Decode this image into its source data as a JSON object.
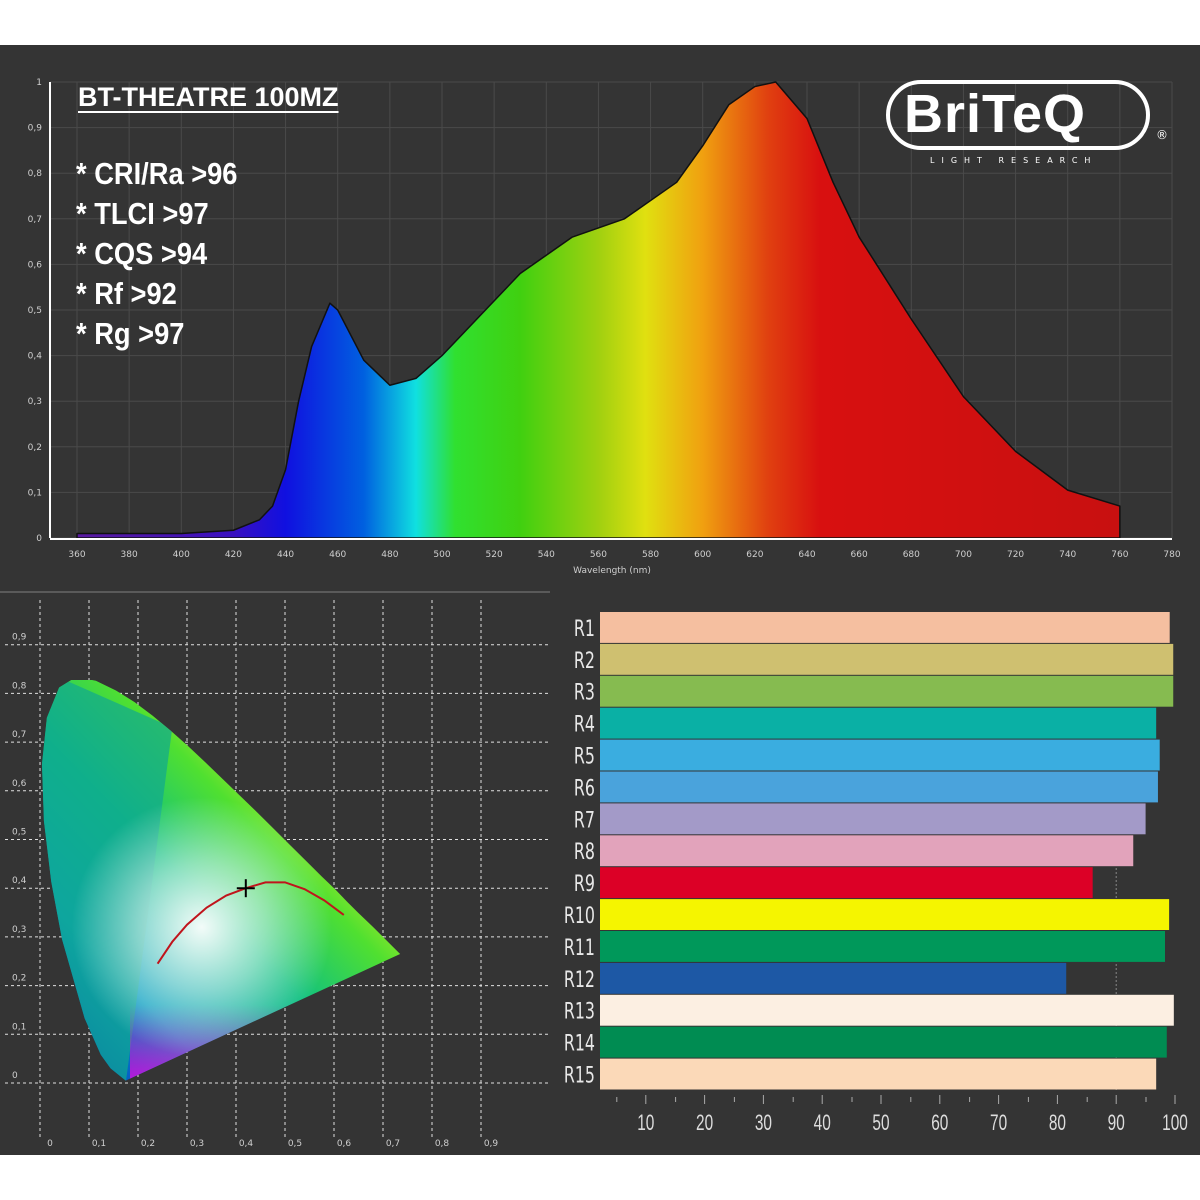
{
  "chart_data": [
    {
      "type": "area",
      "title": "BT-THEATRE 100MZ",
      "xlabel": "Wavelength (nm)",
      "ylabel": "",
      "xlim": [
        360,
        780
      ],
      "ylim": [
        0,
        1
      ],
      "grid": true,
      "x_ticks": [
        "360",
        "380",
        "400",
        "420",
        "440",
        "460",
        "480",
        "500",
        "520",
        "540",
        "560",
        "580",
        "600",
        "620",
        "640",
        "660",
        "680",
        "700",
        "720",
        "740",
        "760",
        "780"
      ],
      "y_ticks": [
        "0",
        "0,1",
        "0,2",
        "0,3",
        "0,4",
        "0,5",
        "0,6",
        "0,7",
        "0,8",
        "0,9",
        "1"
      ],
      "x": [
        360,
        400,
        420,
        430,
        435,
        440,
        445,
        450,
        457,
        460,
        470,
        480,
        490,
        500,
        510,
        520,
        530,
        540,
        550,
        560,
        570,
        580,
        590,
        600,
        610,
        620,
        628,
        640,
        650,
        660,
        680,
        700,
        720,
        740,
        760
      ],
      "y": [
        0.01,
        0.01,
        0.017,
        0.04,
        0.07,
        0.15,
        0.3,
        0.42,
        0.515,
        0.5,
        0.39,
        0.335,
        0.35,
        0.4,
        0.46,
        0.52,
        0.58,
        0.62,
        0.66,
        0.68,
        0.7,
        0.74,
        0.78,
        0.86,
        0.95,
        0.99,
        1.0,
        0.92,
        0.78,
        0.66,
        0.48,
        0.31,
        0.19,
        0.105,
        0.07
      ],
      "annotations": [
        "* CRI/Ra  >96",
        "* TLCI  >97",
        "* CQS  >94",
        "* Rf  >92",
        "* Rg  >97"
      ]
    },
    {
      "type": "scatter",
      "title": "",
      "xlim": [
        0,
        0.9
      ],
      "ylim": [
        0,
        0.9
      ],
      "grid": true,
      "x_ticks": [
        "0",
        "0,1",
        "0,2",
        "0,3",
        "0,4",
        "0,5",
        "0,6",
        "0,7",
        "0,8",
        "0,9"
      ],
      "y_ticks": [
        "0",
        "0,1",
        "0,2",
        "0,3",
        "0,4",
        "0,5",
        "0,6",
        "0,7",
        "0,8",
        "0,9"
      ],
      "planckian_locus": {
        "x": [
          0.24,
          0.27,
          0.3,
          0.34,
          0.38,
          0.42,
          0.46,
          0.5,
          0.54,
          0.58,
          0.62
        ],
        "y": [
          0.245,
          0.29,
          0.325,
          0.36,
          0.385,
          0.4,
          0.412,
          0.412,
          0.398,
          0.375,
          0.345
        ],
        "color": "#c0141c"
      },
      "point": {
        "x": 0.42,
        "y": 0.4,
        "marker": "cross"
      }
    },
    {
      "type": "bar",
      "orientation": "horizontal",
      "title": "",
      "xlim": [
        0,
        100
      ],
      "x_ticks": [
        "10",
        "20",
        "30",
        "40",
        "50",
        "60",
        "70",
        "80",
        "90",
        "100"
      ],
      "categories": [
        "R1",
        "R2",
        "R3",
        "R4",
        "R5",
        "R6",
        "R7",
        "R8",
        "R9",
        "R10",
        "R11",
        "R12",
        "R13",
        "R14",
        "R15"
      ],
      "values": [
        99.1,
        99.7,
        99.7,
        96.8,
        97.4,
        97.1,
        95,
        92.9,
        86,
        99,
        98.3,
        81.5,
        99.8,
        98.6,
        96.8
      ],
      "colors": [
        "#f5bfa0",
        "#cfc070",
        "#86bb50",
        "#0ab0a5",
        "#3aade0",
        "#4aa3dc",
        "#a39ac8",
        "#e2a3bb",
        "#dc0026",
        "#f5f500",
        "#00985a",
        "#1d58a5",
        "#fcefe2",
        "#008c52",
        "#fbd9b8"
      ]
    }
  ],
  "logo": {
    "text": "BriTeQ",
    "tagline": "LIGHT RESEARCH",
    "mark": "®"
  }
}
